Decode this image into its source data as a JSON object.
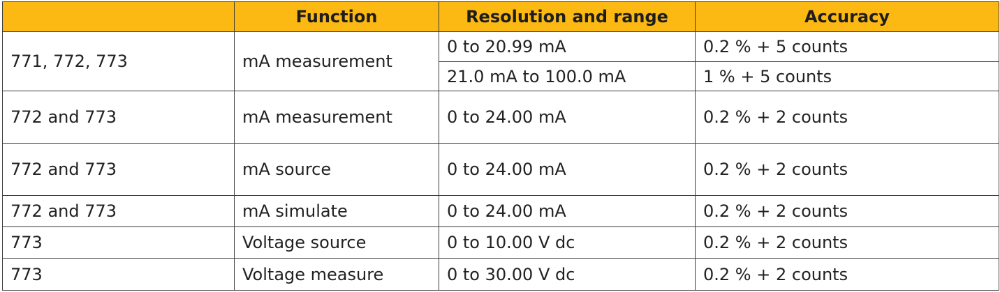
{
  "header": {
    "columns": [
      "Function",
      "Resolution and range",
      "Accuracy"
    ]
  },
  "rows": [
    {
      "model": "771, 772, 773",
      "function": "mA measurement",
      "ranges": [
        {
          "range": "0 to 20.99 mA",
          "accuracy": "0.2 % + 5 counts"
        },
        {
          "range": "21.0 mA to 100.0 mA",
          "accuracy": "1 % + 5 counts"
        }
      ]
    },
    {
      "model": "772 and 773",
      "function": "mA measurement",
      "ranges": [
        {
          "range": "0 to 24.00 mA",
          "accuracy": "0.2 % + 2 counts"
        }
      ]
    },
    {
      "model": "772 and 773",
      "function": "mA source",
      "ranges": [
        {
          "range": "0 to 24.00 mA",
          "accuracy": "0.2 % + 2 counts"
        }
      ]
    },
    {
      "model": "772 and 773",
      "function": "mA simulate",
      "ranges": [
        {
          "range": "0 to 24.00 mA",
          "accuracy": "0.2 % + 2 counts"
        }
      ]
    },
    {
      "model": "773",
      "function": "Voltage source",
      "ranges": [
        {
          "range": "0 to 10.00 V dc",
          "accuracy": "0.2 % + 2 counts"
        }
      ]
    },
    {
      "model": "773",
      "function": "Voltage measure",
      "ranges": [
        {
          "range": "0 to 30.00 V dc",
          "accuracy": "0.2 % + 2 counts"
        }
      ]
    }
  ]
}
